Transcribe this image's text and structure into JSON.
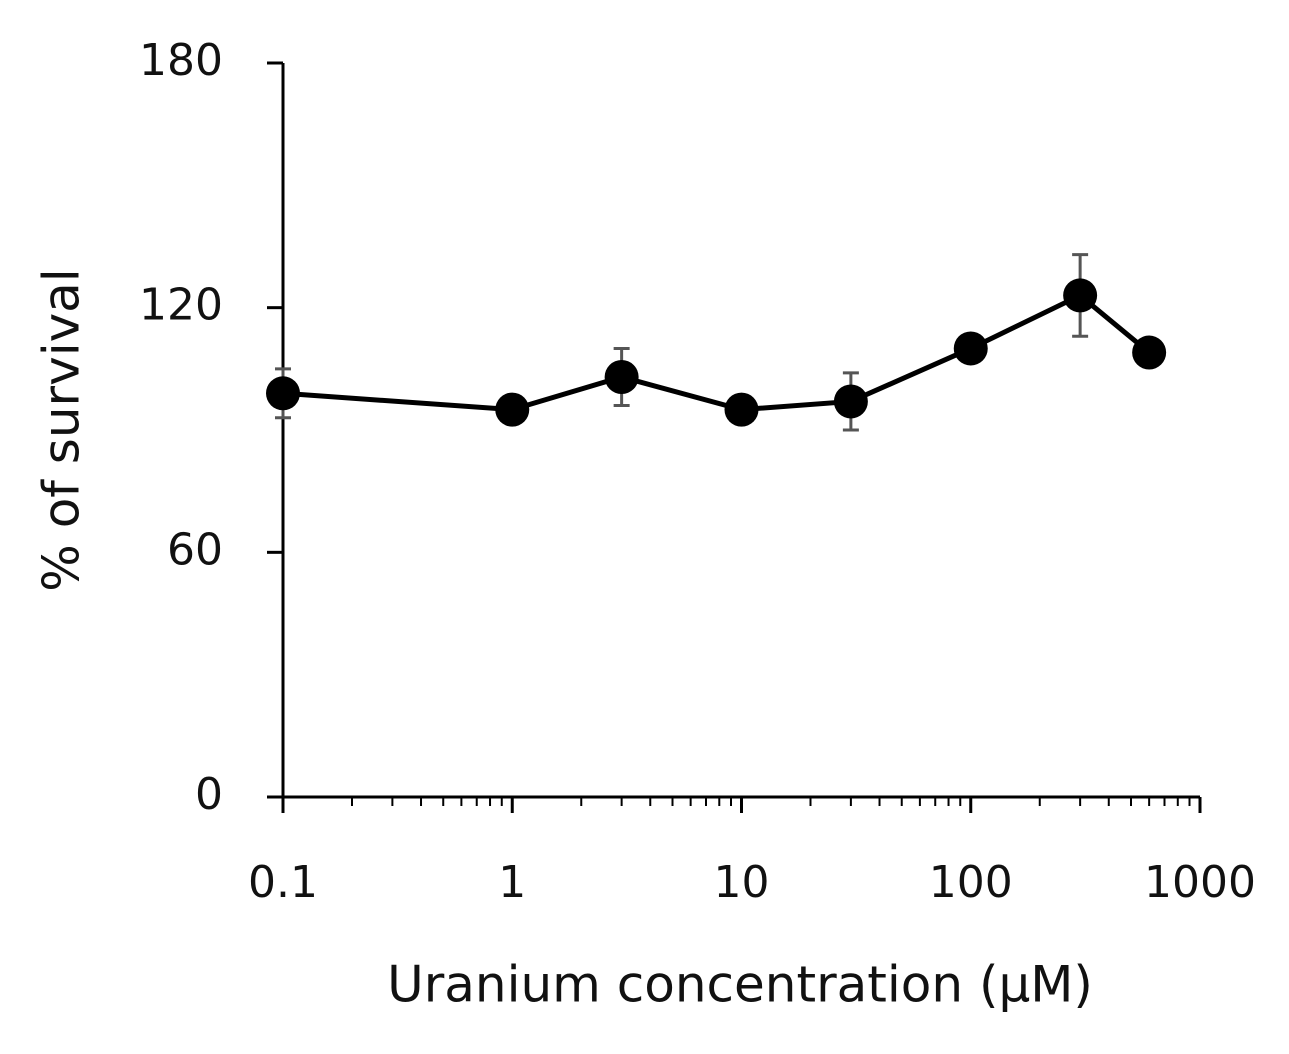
{
  "chart_data": {
    "type": "line",
    "xlabel": "Uranium concentration (μM)",
    "ylabel": "% of survival",
    "x": [
      0.1,
      1,
      3,
      10,
      30,
      100,
      300,
      600
    ],
    "values": [
      99,
      95,
      103,
      95,
      97,
      110,
      123,
      109
    ],
    "errors": [
      6,
      2,
      7,
      3,
      7,
      3,
      10,
      2
    ],
    "color": "#000000",
    "error_color": "#555555",
    "xscale": "log",
    "minor_ticks": true,
    "xlim": [
      0.1,
      1000
    ],
    "xticks": [
      0.1,
      1,
      10,
      100,
      1000
    ],
    "ylim": [
      0,
      180
    ],
    "yticks": [
      0,
      60,
      120,
      180
    ]
  }
}
